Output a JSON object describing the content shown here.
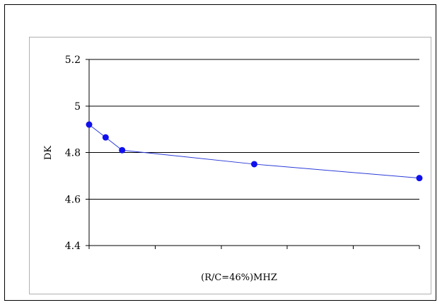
{
  "chart_data": {
    "type": "line",
    "title": "",
    "xlabel": "(R/C=46%)MHZ",
    "ylabel": "DK",
    "ylim": [
      4.4,
      5.2
    ],
    "yticks": [
      "4.4",
      "4.6",
      "4.8",
      "5",
      "5.2"
    ],
    "xticks": [],
    "x_category_count": 5,
    "grid": "horizontal",
    "legend": "none",
    "series": [
      {
        "color": "#2a3bd8",
        "marker_color": "#1010ee",
        "points": [
          {
            "x": 0.0,
            "y": 4.92
          },
          {
            "x": 0.25,
            "y": 4.865
          },
          {
            "x": 0.5,
            "y": 4.81
          },
          {
            "x": 2.5,
            "y": 4.75
          },
          {
            "x": 5.0,
            "y": 4.69
          }
        ]
      }
    ]
  }
}
